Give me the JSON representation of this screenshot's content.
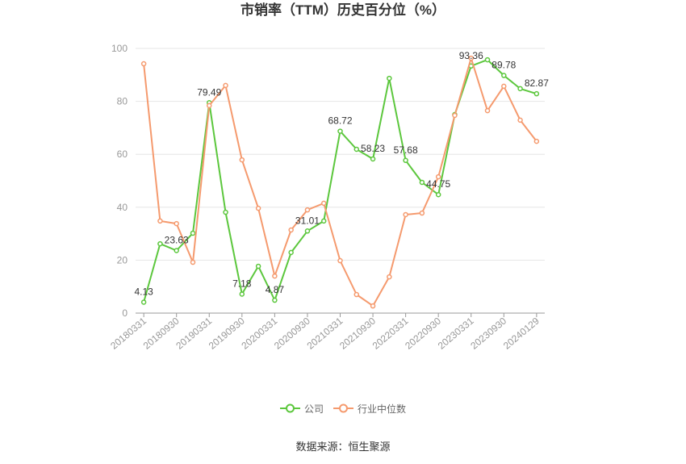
{
  "source": "数据来源：恒生聚源",
  "chart_data": {
    "type": "line",
    "title": "市销率（TTM）历史百分位（%）",
    "categories": [
      "20180331",
      "",
      "20180930",
      "",
      "20190331",
      "",
      "20190930",
      "",
      "20200331",
      "",
      "20200930",
      "",
      "20210331",
      "",
      "20210930",
      "",
      "20220331",
      "",
      "20220930",
      "",
      "20230331",
      "",
      "20230930",
      "",
      "20240129"
    ],
    "ylim": [
      0,
      100
    ],
    "yticks": [
      0,
      20,
      40,
      60,
      80,
      100
    ],
    "grid": true,
    "legend": "bottom",
    "series": [
      {
        "name": "公司",
        "color": "#5cc73d",
        "values": [
          4.13,
          26.2,
          23.63,
          30.2,
          79.49,
          38.1,
          7.18,
          17.7,
          4.87,
          22.9,
          31.01,
          34.8,
          68.72,
          61.9,
          58.23,
          88.7,
          57.68,
          49.4,
          44.75,
          75.0,
          93.36,
          95.7,
          89.78,
          84.8,
          82.87
        ],
        "data_labels": [
          "4.13",
          "",
          "23.63",
          "",
          "79.49",
          "",
          "7.18",
          "",
          "4.87",
          "",
          "31.01",
          "",
          "68.72",
          "",
          "58.23",
          "",
          "57.68",
          "",
          "44.75",
          "",
          "93.36",
          "",
          "89.78",
          "",
          "82.87"
        ]
      },
      {
        "name": "行业中位数",
        "color": "#f59a6e",
        "values": [
          94.2,
          34.8,
          33.8,
          19.2,
          78.4,
          86.0,
          57.9,
          39.6,
          14.0,
          31.4,
          39.0,
          41.5,
          19.8,
          7.0,
          2.7,
          13.7,
          37.2,
          37.8,
          51.5,
          74.7,
          96.3,
          76.5,
          85.7,
          72.9,
          64.9
        ]
      }
    ]
  }
}
